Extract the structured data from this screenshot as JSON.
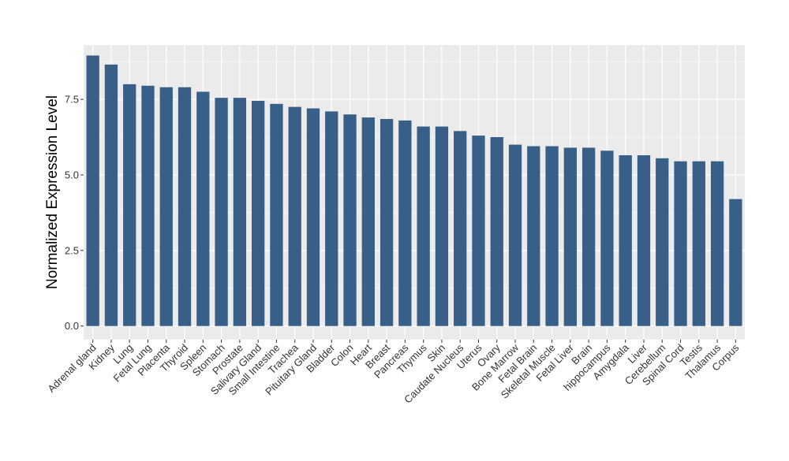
{
  "chart_data": {
    "type": "bar",
    "ylabel": "Normalized Expression Level",
    "ylim": [
      -0.45,
      9.3
    ],
    "yticks": [
      0.0,
      2.5,
      5.0,
      7.5
    ],
    "ytick_labels": [
      "0.0",
      "2.5",
      "5.0",
      "7.5"
    ],
    "grid": true,
    "categories": [
      "Adrenal gland",
      "Kidney",
      "Lung",
      "Fetal Lung",
      "Placenta",
      "Thyroid",
      "Spleen",
      "Stomach",
      "Prostate",
      "Salivary Gland",
      "Small Intestine",
      "Trachea",
      "Pituitary Gland",
      "Bladder",
      "Colon",
      "Heart",
      "Breast",
      "Pancreas",
      "Thymus",
      "Skin",
      "Caudate Nucleus",
      "Uterus",
      "Ovary",
      "Bone Marrow",
      "Fetal Brain",
      "Skeletal Muscle",
      "Fetal Liver",
      "Brain",
      "hippocampus",
      "Amygdala",
      "Liver",
      "Cerebellum",
      "Spinal Cord",
      "Testis",
      "Thalamus",
      "Corpus"
    ],
    "values": [
      8.95,
      8.65,
      8.0,
      7.95,
      7.9,
      7.9,
      7.75,
      7.55,
      7.55,
      7.45,
      7.35,
      7.25,
      7.2,
      7.1,
      7.0,
      6.9,
      6.85,
      6.8,
      6.6,
      6.6,
      6.45,
      6.3,
      6.25,
      6.0,
      5.95,
      5.95,
      5.9,
      5.9,
      5.8,
      5.65,
      5.65,
      5.55,
      5.45,
      5.45,
      5.45,
      4.2
    ],
    "bar_color": "#375f87",
    "panel_color": "#ebebeb",
    "grid_color": "#ffffff"
  }
}
